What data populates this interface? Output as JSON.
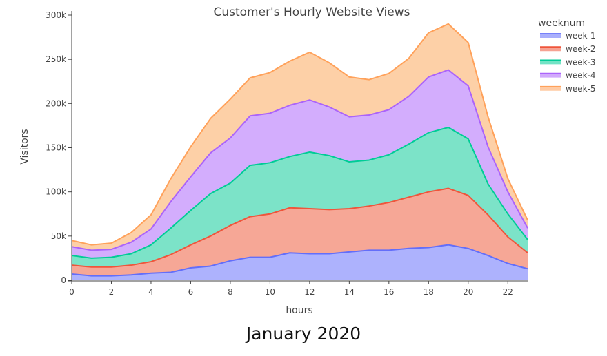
{
  "caption": "January 2020",
  "chart_data": {
    "type": "area",
    "title": "Customer's Hourly Website Views",
    "xlabel": "hours",
    "ylabel": "Visitors",
    "stacked": true,
    "xlim": [
      0,
      23
    ],
    "ylim": [
      0,
      300000
    ],
    "xticks": [
      0,
      2,
      4,
      6,
      8,
      10,
      12,
      14,
      16,
      18,
      20,
      22
    ],
    "yticks": [
      0,
      50000,
      100000,
      150000,
      200000,
      250000,
      300000
    ],
    "ytick_labels": [
      "0",
      "50k",
      "100k",
      "150k",
      "200k",
      "250k",
      "300k"
    ],
    "legend_title": "weeknum",
    "legend_position": "top-right",
    "x": [
      0,
      1,
      2,
      3,
      4,
      5,
      6,
      7,
      8,
      9,
      10,
      11,
      12,
      13,
      14,
      15,
      16,
      17,
      18,
      19,
      20,
      21,
      22,
      23
    ],
    "series": [
      {
        "name": "week-1",
        "color": "#636efa",
        "fill": "#adb2fd",
        "values": [
          7000,
          5000,
          5000,
          6000,
          8000,
          9000,
          14000,
          16000,
          22000,
          26000,
          26000,
          31000,
          30000,
          30000,
          32000,
          34000,
          34000,
          36000,
          37000,
          40000,
          36000,
          28000,
          19000,
          13000
        ]
      },
      {
        "name": "week-2",
        "color": "#ef553b",
        "fill": "#f6a796",
        "values": [
          10000,
          10000,
          10000,
          11000,
          13000,
          20000,
          26000,
          34000,
          40000,
          46000,
          49000,
          51000,
          51000,
          50000,
          49000,
          50000,
          54000,
          58000,
          63000,
          64000,
          60000,
          46000,
          30000,
          18000
        ]
      },
      {
        "name": "week-3",
        "color": "#00cc96",
        "fill": "#7ce3c8",
        "values": [
          11000,
          10000,
          11000,
          13000,
          19000,
          30000,
          39000,
          48000,
          48000,
          58000,
          58000,
          58000,
          64000,
          61000,
          53000,
          52000,
          54000,
          60000,
          67000,
          69000,
          64000,
          35000,
          26000,
          15000
        ]
      },
      {
        "name": "week-4",
        "color": "#ab63fa",
        "fill": "#d3adfd",
        "values": [
          10000,
          9000,
          9000,
          13000,
          18000,
          30000,
          38000,
          46000,
          51000,
          56000,
          56000,
          58000,
          59000,
          55000,
          51000,
          51000,
          51000,
          54000,
          63000,
          65000,
          60000,
          42000,
          25000,
          13000
        ]
      },
      {
        "name": "week-5",
        "color": "#ffa15a",
        "fill": "#fdd0a7",
        "values": [
          7000,
          6000,
          7000,
          11000,
          16000,
          26000,
          34000,
          39000,
          44000,
          43000,
          46000,
          50000,
          54000,
          50000,
          45000,
          40000,
          41000,
          43000,
          50000,
          52000,
          49000,
          34000,
          15000,
          9000
        ]
      }
    ]
  }
}
